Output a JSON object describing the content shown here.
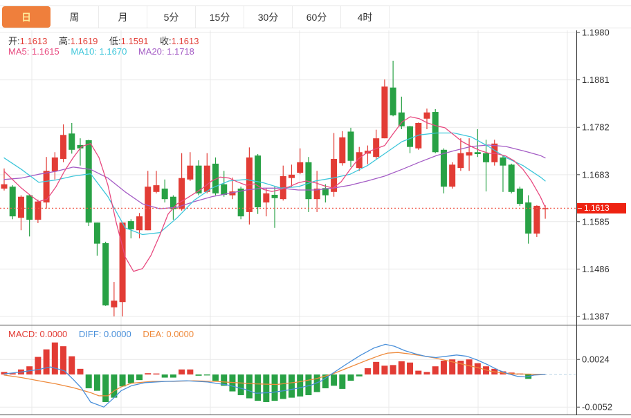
{
  "tab_bar": {
    "tabs": [
      {
        "name": "day",
        "label": "日",
        "active": true
      },
      {
        "name": "week",
        "label": "周",
        "active": false
      },
      {
        "name": "month",
        "label": "月",
        "active": false
      },
      {
        "name": "5min",
        "label": "5分",
        "active": false
      },
      {
        "name": "15min",
        "label": "15分",
        "active": false
      },
      {
        "name": "30min",
        "label": "30分",
        "active": false
      },
      {
        "name": "60min",
        "label": "60分",
        "active": false
      },
      {
        "name": "4hour",
        "label": "4时",
        "active": false
      }
    ]
  },
  "ohlc_legend": {
    "open_label": "开:",
    "open_value": "1.1613",
    "high_label": "高:",
    "high_value": "1.1619",
    "low_label": "低:",
    "low_value": "1.1591",
    "close_label": "收:",
    "close_value": "1.1613"
  },
  "ma_legend": {
    "ma5_label": "MA5: ",
    "ma5_value": "1.1615",
    "ma10_label": "MA10: ",
    "ma10_value": "1.1670",
    "ma20_label": "MA20: ",
    "ma20_value": "1.1718"
  },
  "macd_legend": {
    "macd_label": "MACD: ",
    "macd_value": "0.0000",
    "diff_label": "DIFF: ",
    "diff_value": "0.0000",
    "dea_label": "DEA: ",
    "dea_value": "0.0000"
  },
  "price_tag": "1.1613",
  "colors": {
    "up": "#e23c35",
    "down": "#28a145",
    "ma5": "#e8497f",
    "ma10": "#3dc6da",
    "ma20": "#a45cc5",
    "diff": "#4a90da",
    "dea": "#ee8a3c",
    "label_text": "#333333",
    "value_red": "#e23c35",
    "tab_active_bg": "#ef7f3c",
    "tab_active_text": "#ffeb9a",
    "price_tag_bg": "#ee2211",
    "current_price_line": "#f05a4a",
    "grid": "#e9e9e9",
    "axis": "#3a3a3a",
    "axis_text": "#333333",
    "zero_line": "#b7d3e6"
  },
  "chart_data": {
    "type": "candlestick",
    "title": "EUR/USD daily K-line with MA5/MA10/MA20 and MACD",
    "price_axis": {
      "tick_labels": [
        "1.1980",
        "1.1881",
        "1.1782",
        "1.1683",
        "1.1585",
        "1.1486",
        "1.1387"
      ],
      "tick_values": [
        1.198,
        1.1881,
        1.1782,
        1.1683,
        1.1585,
        1.1486,
        1.1387
      ],
      "top_price": 1.198,
      "bottom_price": 1.1387
    },
    "current_price": 1.1613,
    "candles": [
      [
        1.1654,
        1.1696,
        1.165,
        1.1663
      ],
      [
        1.1658,
        1.1661,
        1.159,
        1.1596
      ],
      [
        1.1593,
        1.164,
        1.1567,
        1.1637
      ],
      [
        1.164,
        1.1641,
        1.1554,
        1.1589
      ],
      [
        1.1589,
        1.1631,
        1.1582,
        1.1627
      ],
      [
        1.1625,
        1.172,
        1.1612,
        1.1691
      ],
      [
        1.169,
        1.173,
        1.1673,
        1.1719
      ],
      [
        1.1716,
        1.1788,
        1.1709,
        1.1766
      ],
      [
        1.1769,
        1.1791,
        1.1727,
        1.1735
      ],
      [
        1.1745,
        1.1759,
        1.1702,
        1.1738
      ],
      [
        1.1755,
        1.1756,
        1.1576,
        1.1583
      ],
      [
        1.1583,
        1.1583,
        1.1514,
        1.1539
      ],
      [
        1.154,
        1.1543,
        1.1409,
        1.141
      ],
      [
        1.1406,
        1.1459,
        1.1387,
        1.142
      ],
      [
        1.1417,
        1.1583,
        1.1387,
        1.1583
      ],
      [
        1.1586,
        1.159,
        1.155,
        1.1569
      ],
      [
        1.1567,
        1.1603,
        1.155,
        1.1596
      ],
      [
        1.1567,
        1.1691,
        1.1567,
        1.1658
      ],
      [
        1.1647,
        1.1691,
        1.1644,
        1.1661
      ],
      [
        1.1654,
        1.1673,
        1.1625,
        1.1632
      ],
      [
        1.1637,
        1.164,
        1.1589,
        1.1611
      ],
      [
        1.1611,
        1.1728,
        1.1608,
        1.1676
      ],
      [
        1.1673,
        1.173,
        1.167,
        1.1702
      ],
      [
        1.1702,
        1.1713,
        1.164,
        1.1644
      ],
      [
        1.1647,
        1.1728,
        1.1644,
        1.1702
      ],
      [
        1.1706,
        1.1719,
        1.164,
        1.1644
      ],
      [
        1.1663,
        1.1691,
        1.1637,
        1.1641
      ],
      [
        1.164,
        1.1677,
        1.1632,
        1.1648
      ],
      [
        1.1654,
        1.1658,
        1.159,
        1.1596
      ],
      [
        1.1605,
        1.174,
        1.1579,
        1.1719
      ],
      [
        1.1723,
        1.1726,
        1.1601,
        1.1615
      ],
      [
        1.1625,
        1.1654,
        1.1596,
        1.1644
      ],
      [
        1.1641,
        1.1658,
        1.1572,
        1.1634
      ],
      [
        1.1632,
        1.1702,
        1.1629,
        1.168
      ],
      [
        1.1676,
        1.1704,
        1.1658,
        1.1683
      ],
      [
        1.1687,
        1.1738,
        1.1684,
        1.1709
      ],
      [
        1.1709,
        1.172,
        1.1605,
        1.1632
      ],
      [
        1.1632,
        1.1691,
        1.1605,
        1.1654
      ],
      [
        1.1655,
        1.1663,
        1.1625,
        1.164
      ],
      [
        1.1647,
        1.177,
        1.1637,
        1.1716
      ],
      [
        1.1707,
        1.1774,
        1.1702,
        1.1761
      ],
      [
        1.1773,
        1.1781,
        1.1699,
        1.1712
      ],
      [
        1.1697,
        1.1741,
        1.1691,
        1.173
      ],
      [
        1.1727,
        1.1744,
        1.1705,
        1.1733
      ],
      [
        1.172,
        1.1777,
        1.1716,
        1.1759
      ],
      [
        1.1759,
        1.1882,
        1.1759,
        1.1867
      ],
      [
        1.1865,
        1.1921,
        1.1805,
        1.1807
      ],
      [
        1.1813,
        1.1846,
        1.1778,
        1.1784
      ],
      [
        1.1784,
        1.1785,
        1.1728,
        1.1741
      ],
      [
        1.1738,
        1.1792,
        1.1735,
        1.1791
      ],
      [
        1.18,
        1.1821,
        1.1778,
        1.1813
      ],
      [
        1.1814,
        1.182,
        1.1728,
        1.173
      ],
      [
        1.1735,
        1.1738,
        1.1644,
        1.1658
      ],
      [
        1.1658,
        1.1709,
        1.1654,
        1.1704
      ],
      [
        1.1697,
        1.1759,
        1.1691,
        1.1728
      ],
      [
        1.1723,
        1.1759,
        1.1691,
        1.173
      ],
      [
        1.173,
        1.1778,
        1.172,
        1.1726
      ],
      [
        1.1728,
        1.1756,
        1.1648,
        1.1709
      ],
      [
        1.1709,
        1.1756,
        1.1702,
        1.1748
      ],
      [
        1.1719,
        1.1723,
        1.1647,
        1.1702
      ],
      [
        1.1704,
        1.1706,
        1.1644,
        1.1647
      ],
      [
        1.1654,
        1.1658,
        1.1618,
        1.1622
      ],
      [
        1.1625,
        1.164,
        1.1539,
        1.156
      ],
      [
        1.156,
        1.1619,
        1.1553,
        1.1618
      ],
      [
        1.1613,
        1.1619,
        1.1591,
        1.1613
      ]
    ],
    "ma5": [
      [
        6,
        1.169
      ],
      [
        18,
        1.1673
      ],
      [
        31,
        1.1655
      ],
      [
        43,
        1.1641
      ],
      [
        56,
        1.1627
      ],
      [
        68,
        1.1632
      ],
      [
        81,
        1.1658
      ],
      [
        93,
        1.169
      ],
      [
        106,
        1.1719
      ],
      [
        118,
        1.1742
      ],
      [
        131,
        1.1748
      ],
      [
        143,
        1.1719
      ],
      [
        156,
        1.1661
      ],
      [
        168,
        1.1583
      ],
      [
        181,
        1.1511
      ],
      [
        193,
        1.1481
      ],
      [
        206,
        1.1487
      ],
      [
        218,
        1.1514
      ],
      [
        231,
        1.1557
      ],
      [
        243,
        1.1601
      ],
      [
        256,
        1.1622
      ],
      [
        268,
        1.1632
      ],
      [
        281,
        1.1644
      ],
      [
        293,
        1.1655
      ],
      [
        306,
        1.167
      ],
      [
        318,
        1.1678
      ],
      [
        331,
        1.1676
      ],
      [
        343,
        1.1668
      ],
      [
        356,
        1.1661
      ],
      [
        368,
        1.1664
      ],
      [
        381,
        1.1652
      ],
      [
        393,
        1.1648
      ],
      [
        406,
        1.1652
      ],
      [
        418,
        1.1658
      ],
      [
        431,
        1.1666
      ],
      [
        443,
        1.167
      ],
      [
        456,
        1.1666
      ],
      [
        468,
        1.166
      ],
      [
        481,
        1.1655
      ],
      [
        493,
        1.1668
      ],
      [
        506,
        1.1694
      ],
      [
        518,
        1.1716
      ],
      [
        531,
        1.173
      ],
      [
        543,
        1.1737
      ],
      [
        556,
        1.1744
      ],
      [
        568,
        1.1768
      ],
      [
        581,
        1.1793
      ],
      [
        593,
        1.1804
      ],
      [
        606,
        1.18
      ],
      [
        618,
        1.1791
      ],
      [
        631,
        1.1785
      ],
      [
        643,
        1.1781
      ],
      [
        656,
        1.1766
      ],
      [
        668,
        1.1752
      ],
      [
        681,
        1.1742
      ],
      [
        693,
        1.1734
      ],
      [
        706,
        1.1728
      ],
      [
        718,
        1.1727
      ],
      [
        731,
        1.1722
      ],
      [
        743,
        1.1712
      ],
      [
        756,
        1.1694
      ],
      [
        768,
        1.167
      ],
      [
        781,
        1.1637
      ],
      [
        788,
        1.1615
      ]
    ],
    "ma10": [
      [
        6,
        1.1718
      ],
      [
        31,
        1.1694
      ],
      [
        56,
        1.1667
      ],
      [
        81,
        1.1672
      ],
      [
        106,
        1.168
      ],
      [
        131,
        1.1685
      ],
      [
        156,
        1.1637
      ],
      [
        181,
        1.1572
      ],
      [
        206,
        1.1558
      ],
      [
        231,
        1.1562
      ],
      [
        256,
        1.1593
      ],
      [
        281,
        1.163
      ],
      [
        306,
        1.1655
      ],
      [
        331,
        1.167
      ],
      [
        356,
        1.1673
      ],
      [
        381,
        1.1666
      ],
      [
        406,
        1.1655
      ],
      [
        431,
        1.1658
      ],
      [
        456,
        1.167
      ],
      [
        481,
        1.1676
      ],
      [
        506,
        1.1684
      ],
      [
        531,
        1.1702
      ],
      [
        556,
        1.1727
      ],
      [
        581,
        1.1752
      ],
      [
        606,
        1.1766
      ],
      [
        631,
        1.177
      ],
      [
        656,
        1.177
      ],
      [
        681,
        1.1762
      ],
      [
        706,
        1.1742
      ],
      [
        731,
        1.1719
      ],
      [
        756,
        1.1702
      ],
      [
        781,
        1.1678
      ],
      [
        788,
        1.167
      ]
    ],
    "ma20": [
      [
        6,
        1.1673
      ],
      [
        31,
        1.1676
      ],
      [
        56,
        1.1684
      ],
      [
        81,
        1.169
      ],
      [
        106,
        1.1699
      ],
      [
        131,
        1.1694
      ],
      [
        156,
        1.1676
      ],
      [
        181,
        1.1647
      ],
      [
        206,
        1.1622
      ],
      [
        231,
        1.1612
      ],
      [
        256,
        1.1615
      ],
      [
        281,
        1.1627
      ],
      [
        306,
        1.1637
      ],
      [
        331,
        1.1644
      ],
      [
        356,
        1.1651
      ],
      [
        381,
        1.1655
      ],
      [
        406,
        1.1655
      ],
      [
        431,
        1.1651
      ],
      [
        456,
        1.1651
      ],
      [
        481,
        1.1655
      ],
      [
        506,
        1.1661
      ],
      [
        531,
        1.167
      ],
      [
        556,
        1.168
      ],
      [
        581,
        1.1694
      ],
      [
        606,
        1.1709
      ],
      [
        631,
        1.1723
      ],
      [
        656,
        1.1733
      ],
      [
        681,
        1.1742
      ],
      [
        706,
        1.1745
      ],
      [
        731,
        1.1742
      ],
      [
        756,
        1.1733
      ],
      [
        781,
        1.1723
      ],
      [
        788,
        1.1718
      ]
    ],
    "vertical_gridlines": [
      46,
      175,
      304,
      433,
      562,
      691,
      820
    ],
    "macd": {
      "tick_labels": [
        "0.0024",
        "-0.0052"
      ],
      "tick_values": [
        0.0024,
        -0.0052
      ],
      "histogram": [
        0.0004,
        0.0002,
        0.0008,
        0.0013,
        0.0028,
        0.004,
        0.0051,
        0.0045,
        0.0029,
        0.0009,
        -0.0022,
        -0.0026,
        -0.0044,
        -0.0037,
        -0.0019,
        -0.0014,
        -0.0009,
        0.0002,
        0.0001,
        -0.0005,
        -0.0005,
        0.0008,
        0.0008,
        -0.0002,
        -0.0001,
        -0.001,
        -0.0018,
        -0.0027,
        -0.0033,
        -0.0038,
        -0.0042,
        -0.0044,
        -0.0042,
        -0.0039,
        -0.0037,
        -0.0035,
        -0.0033,
        -0.0028,
        -0.0022,
        -0.0018,
        -0.0023,
        -0.001,
        -0.0003,
        0.001,
        0.002,
        0.0014,
        0.0015,
        0.0021,
        0.0019,
        0.0006,
        0.0004,
        0.0013,
        0.0022,
        0.0024,
        0.0022,
        0.0024,
        0.0018,
        0.0013,
        0.0009,
        0.0005,
        0.0003,
        0.0001,
        -0.0007,
        0.0,
        0.0
      ],
      "diff": [
        [
          6,
          0.0001
        ],
        [
          31,
          0.0004
        ],
        [
          56,
          0.0008
        ],
        [
          73,
          0.0012
        ],
        [
          93,
          0.0006
        ],
        [
          106,
          -0.0008
        ],
        [
          118,
          -0.0022
        ],
        [
          131,
          -0.0044
        ],
        [
          143,
          -0.0049
        ],
        [
          150,
          -0.0052
        ],
        [
          162,
          -0.004
        ],
        [
          175,
          -0.0026
        ],
        [
          190,
          -0.0018
        ],
        [
          210,
          -0.0013
        ],
        [
          240,
          -0.0011
        ],
        [
          270,
          -0.001
        ],
        [
          300,
          -0.0012
        ],
        [
          330,
          -0.0017
        ],
        [
          355,
          -0.0024
        ],
        [
          370,
          -0.003
        ],
        [
          390,
          -0.0029
        ],
        [
          410,
          -0.0026
        ],
        [
          430,
          -0.0022
        ],
        [
          450,
          -0.0017
        ],
        [
          465,
          -0.001
        ],
        [
          481,
          0.0002
        ],
        [
          500,
          0.0016
        ],
        [
          520,
          0.003
        ],
        [
          540,
          0.0042
        ],
        [
          557,
          0.0048
        ],
        [
          570,
          0.0045
        ],
        [
          585,
          0.0038
        ],
        [
          600,
          0.0033
        ],
        [
          615,
          0.0029
        ],
        [
          630,
          0.0027
        ],
        [
          645,
          0.0029
        ],
        [
          660,
          0.0031
        ],
        [
          675,
          0.0029
        ],
        [
          690,
          0.0023
        ],
        [
          706,
          0.0015
        ],
        [
          720,
          0.0007
        ],
        [
          735,
          0.0001
        ],
        [
          748,
          -0.0003
        ],
        [
          760,
          -0.0004
        ],
        [
          772,
          -0.0001
        ],
        [
          788,
          0.0
        ]
      ],
      "dea": [
        [
          6,
          -0.0001
        ],
        [
          31,
          -0.0005
        ],
        [
          56,
          -0.001
        ],
        [
          81,
          -0.0015
        ],
        [
          106,
          -0.0021
        ],
        [
          131,
          -0.0029
        ],
        [
          143,
          -0.0034
        ],
        [
          156,
          -0.0034
        ],
        [
          165,
          -0.0026
        ],
        [
          175,
          -0.002
        ],
        [
          190,
          -0.0014
        ],
        [
          220,
          -0.0011
        ],
        [
          250,
          -0.0011
        ],
        [
          280,
          -0.001
        ],
        [
          310,
          -0.0011
        ],
        [
          340,
          -0.0013
        ],
        [
          370,
          -0.0015
        ],
        [
          400,
          -0.0016
        ],
        [
          431,
          -0.0012
        ],
        [
          456,
          -0.0007
        ],
        [
          481,
          0.0001
        ],
        [
          506,
          0.0012
        ],
        [
          531,
          0.0023
        ],
        [
          548,
          0.003
        ],
        [
          560,
          0.0034
        ],
        [
          575,
          0.0035
        ],
        [
          590,
          0.0033
        ],
        [
          610,
          0.003
        ],
        [
          630,
          0.0026
        ],
        [
          650,
          0.0021
        ],
        [
          670,
          0.0016
        ],
        [
          690,
          0.0011
        ],
        [
          710,
          0.0005
        ],
        [
          730,
          0.0002
        ],
        [
          745,
          0.0001
        ],
        [
          788,
          0.0
        ]
      ]
    }
  }
}
